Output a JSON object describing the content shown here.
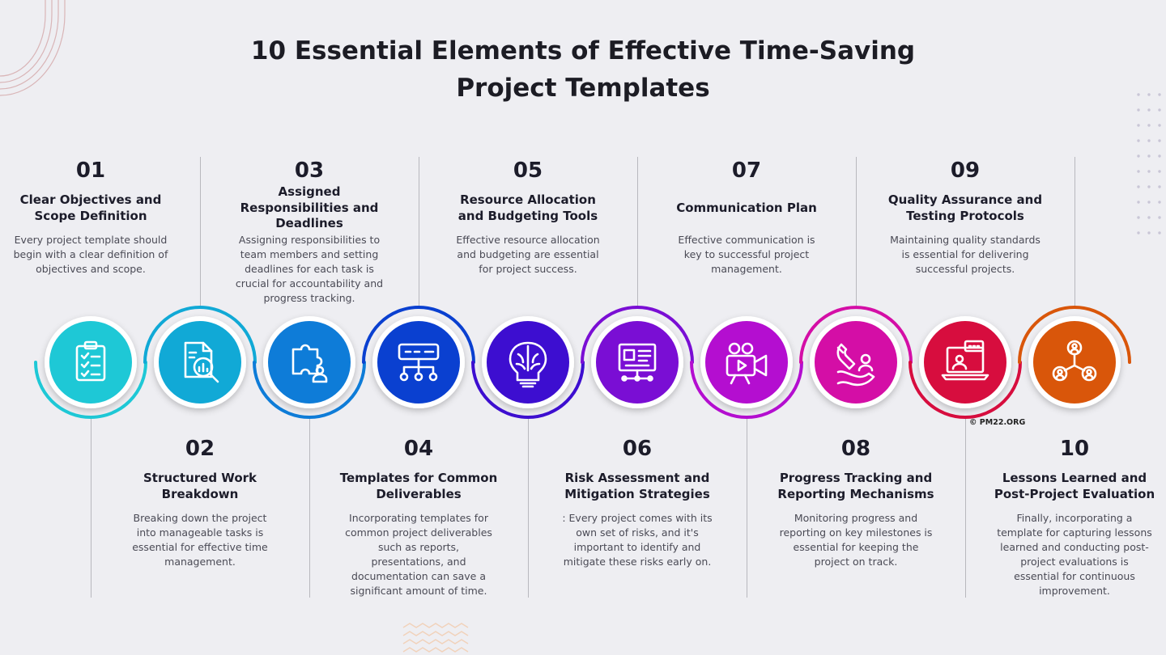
{
  "title": {
    "line1": "10 Essential Elements of Effective Time-Saving",
    "line2": "Project Templates"
  },
  "copyright": "© PM22.ORG",
  "steps": [
    {
      "num": "01",
      "title": "Clear Objectives and Scope Definition",
      "desc": "Every project template should begin with a clear definition of objectives and scope.",
      "icon": "clipboard-checklist-icon",
      "color": "#1ec8d6"
    },
    {
      "num": "02",
      "title": "Structured Work Breakdown",
      "desc": "Breaking down the project into manageable tasks is essential for effective time management.",
      "icon": "document-magnifier-icon",
      "color": "#11a9d6"
    },
    {
      "num": "03",
      "title": "Assigned Responsibilities and Deadlines",
      "desc": "Assigning responsibilities to team members and setting deadlines for each task is crucial for accountability and progress tracking.",
      "icon": "puzzle-person-icon",
      "color": "#0e7cd8"
    },
    {
      "num": "04",
      "title": "Templates for Common Deliverables",
      "desc": "Incorporating templates for common project deliverables such as reports, presentations, and documentation can save a significant amount of time.",
      "icon": "hierarchy-network-icon",
      "color": "#0a40d0"
    },
    {
      "num": "05",
      "title": "Resource Allocation and Budgeting Tools",
      "desc": "Effective resource allocation and budgeting are essential for project success.",
      "icon": "brain-bulb-icon",
      "color": "#3d0ed0"
    },
    {
      "num": "06",
      "title": "Risk Assessment and Mitigation Strategies",
      "desc": ": Every project comes with its own set of risks, and it's important to identify and mitigate these risks early on.",
      "icon": "presentation-board-icon",
      "color": "#7a0ed4"
    },
    {
      "num": "07",
      "title": "Communication Plan",
      "desc": "Effective communication is key to successful project management.",
      "icon": "video-camera-icon",
      "color": "#b40ed0"
    },
    {
      "num": "08",
      "title": "Progress Tracking and Reporting Mechanisms",
      "desc": "Monitoring progress and reporting on key milestones is essential for keeping the project on track.",
      "icon": "magnet-hand-icon",
      "color": "#d40ea6"
    },
    {
      "num": "09",
      "title": "Quality Assurance and Testing Protocols",
      "desc": "Maintaining quality standards is essential for delivering successful projects.",
      "icon": "laptop-chat-icon",
      "color": "#d70d3e"
    },
    {
      "num": "10",
      "title": "Lessons Learned and Post-Project Evaluation",
      "desc": "Finally, incorporating a template for capturing lessons learned and conducting post-project evaluations is essential for continuous improvement.",
      "icon": "team-network-icon",
      "color": "#d9560a"
    }
  ]
}
